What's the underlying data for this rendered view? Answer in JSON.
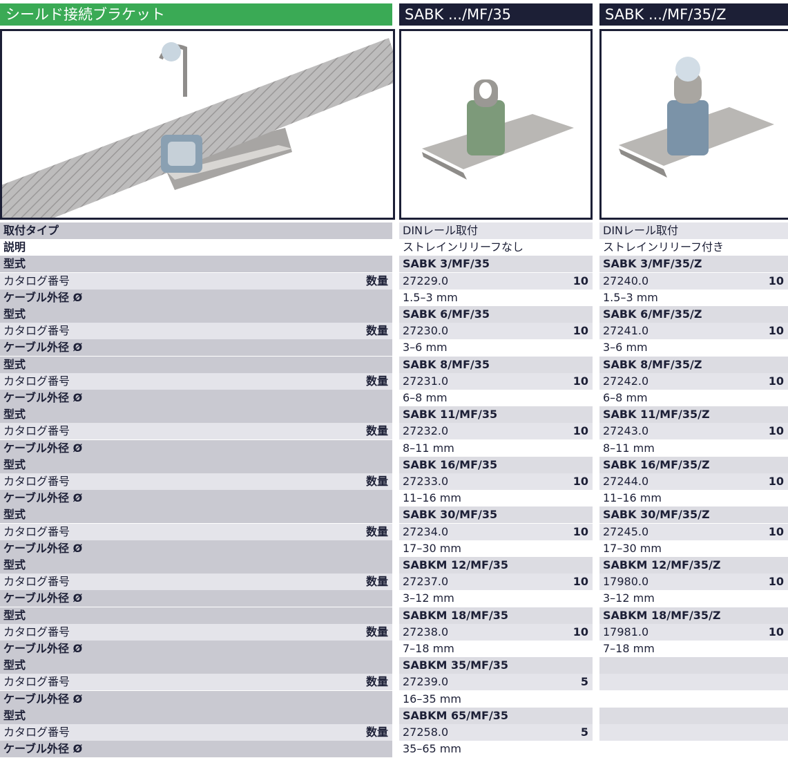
{
  "header": {
    "title": "シールド接続ブラケット",
    "columns": [
      "SABK .../MF/35",
      "SABK .../MF/35/Z"
    ]
  },
  "labels": {
    "mount": "取付タイプ",
    "description": "説明",
    "type": "型式",
    "catalog": "カタログ番号",
    "quantity": "数量",
    "cable": "ケーブル外径 Ø"
  },
  "products": [
    {
      "mount": "DINレール取付",
      "description": "ストレインリリーフなし",
      "items": [
        {
          "type": "SABK 3/MF/35",
          "catalog": "27229.0",
          "quantity": 10,
          "cable": "1.5–3 mm"
        },
        {
          "type": "SABK 6/MF/35",
          "catalog": "27230.0",
          "quantity": 10,
          "cable": "3–6 mm"
        },
        {
          "type": "SABK 8/MF/35",
          "catalog": "27231.0",
          "quantity": 10,
          "cable": "6–8 mm"
        },
        {
          "type": "SABK 11/MF/35",
          "catalog": "27232.0",
          "quantity": 10,
          "cable": "8–11 mm"
        },
        {
          "type": "SABK 16/MF/35",
          "catalog": "27233.0",
          "quantity": 10,
          "cable": "11–16 mm"
        },
        {
          "type": "SABK 30/MF/35",
          "catalog": "27234.0",
          "quantity": 10,
          "cable": "17–30 mm"
        },
        {
          "type": "SABKM 12/MF/35",
          "catalog": "27237.0",
          "quantity": 10,
          "cable": "3–12 mm"
        },
        {
          "type": "SABKM 18/MF/35",
          "catalog": "27238.0",
          "quantity": 10,
          "cable": "7–18 mm"
        },
        {
          "type": "SABKM 35/MF/35",
          "catalog": "27239.0",
          "quantity": 5,
          "cable": "16–35 mm"
        },
        {
          "type": "SABKM 65/MF/35",
          "catalog": "27258.0",
          "quantity": 5,
          "cable": "35–65 mm"
        }
      ]
    },
    {
      "mount": "DINレール取付",
      "description": "ストレインリリーフ付き",
      "items": [
        {
          "type": "SABK 3/MF/35/Z",
          "catalog": "27240.0",
          "quantity": 10,
          "cable": "1.5–3 mm"
        },
        {
          "type": "SABK 6/MF/35/Z",
          "catalog": "27241.0",
          "quantity": 10,
          "cable": "3–6 mm"
        },
        {
          "type": "SABK 8/MF/35/Z",
          "catalog": "27242.0",
          "quantity": 10,
          "cable": "6–8 mm"
        },
        {
          "type": "SABK 11/MF/35/Z",
          "catalog": "27243.0",
          "quantity": 10,
          "cable": "8–11 mm"
        },
        {
          "type": "SABK 16/MF/35/Z",
          "catalog": "27244.0",
          "quantity": 10,
          "cable": "11–16 mm"
        },
        {
          "type": "SABK 30/MF/35/Z",
          "catalog": "27245.0",
          "quantity": 10,
          "cable": "17–30 mm"
        },
        {
          "type": "SABKM 12/MF/35/Z",
          "catalog": "17980.0",
          "quantity": 10,
          "cable": "3–12 mm"
        },
        {
          "type": "SABKM 18/MF/35/Z",
          "catalog": "17981.0",
          "quantity": 10,
          "cable": "7–18 mm"
        }
      ]
    }
  ]
}
